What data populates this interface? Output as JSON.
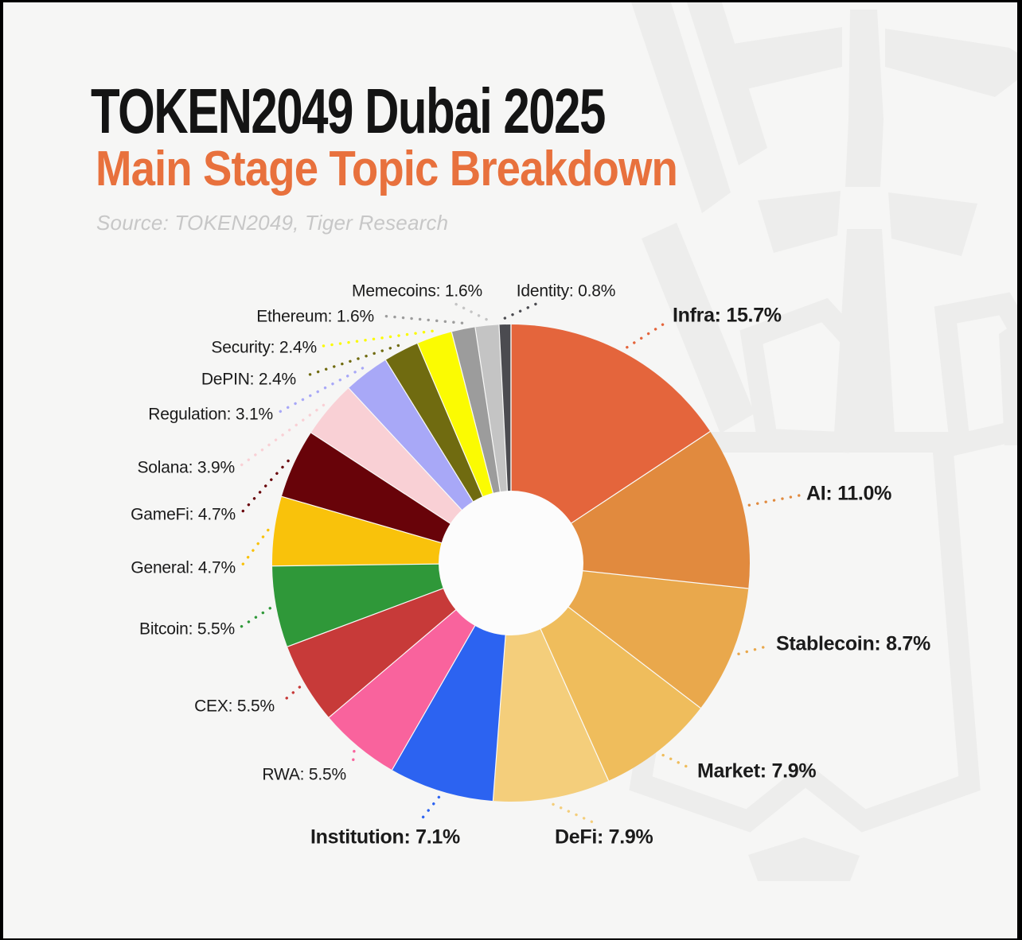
{
  "header": {
    "title": "TOKEN2049 Dubai 2025",
    "subtitle": "Main Stage Topic Breakdown",
    "source": "Source: TOKEN2049, Tiger Research"
  },
  "colors": {
    "background": "#F6F6F5",
    "watermark": "#EDEDEC",
    "title_text": "#141414",
    "subtitle_text": "#E8713D",
    "source_text": "#C7C7C7",
    "label_text": "#1B1B1B",
    "donut_hole": "#FCFCFC",
    "slice_separator": "#FAFAF9",
    "edge_border": "#000000"
  },
  "chart_data": {
    "type": "pie",
    "variant": "donut",
    "title": "TOKEN2049 Dubai 2025 — Main Stage Topic Breakdown",
    "unit": "%",
    "order": "clockwise from 12 o'clock, descending by value",
    "legend_position": "callout labels around chart with dotted leader lines",
    "inner_radius_ratio": 0.3,
    "slices": [
      {
        "label": "Infra",
        "value": 15.7,
        "color": "#E4653C",
        "emphasis": true
      },
      {
        "label": "AI",
        "value": 11.0,
        "color": "#E18A3E",
        "emphasis": true
      },
      {
        "label": "Stablecoin",
        "value": 8.7,
        "color": "#E9A84C",
        "emphasis": true
      },
      {
        "label": "Market",
        "value": 7.9,
        "color": "#EFBD5C",
        "emphasis": true
      },
      {
        "label": "DeFi",
        "value": 7.9,
        "color": "#F4CE7B",
        "emphasis": true
      },
      {
        "label": "Institution",
        "value": 7.1,
        "color": "#2C63F1",
        "emphasis": true
      },
      {
        "label": "RWA",
        "value": 5.5,
        "color": "#F9639D",
        "emphasis": false
      },
      {
        "label": "CEX",
        "value": 5.5,
        "color": "#C73A39",
        "emphasis": false
      },
      {
        "label": "Bitcoin",
        "value": 5.5,
        "color": "#2F9839",
        "emphasis": false
      },
      {
        "label": "General",
        "value": 4.7,
        "color": "#F9C20B",
        "emphasis": false
      },
      {
        "label": "GameFi",
        "value": 4.7,
        "color": "#680309",
        "emphasis": false
      },
      {
        "label": "Solana",
        "value": 3.9,
        "color": "#F9D0D5",
        "emphasis": false
      },
      {
        "label": "Regulation",
        "value": 3.1,
        "color": "#A8A8F7",
        "emphasis": false
      },
      {
        "label": "DePIN",
        "value": 2.4,
        "color": "#706B10",
        "emphasis": false
      },
      {
        "label": "Security",
        "value": 2.4,
        "color": "#FBFB02",
        "emphasis": false
      },
      {
        "label": "Ethereum",
        "value": 1.6,
        "color": "#9C9C9C",
        "emphasis": false
      },
      {
        "label": "Memecoins",
        "value": 1.6,
        "color": "#C4C4C4",
        "emphasis": false
      },
      {
        "label": "Identity",
        "value": 0.8,
        "color": "#4B4B50",
        "emphasis": false
      }
    ]
  }
}
